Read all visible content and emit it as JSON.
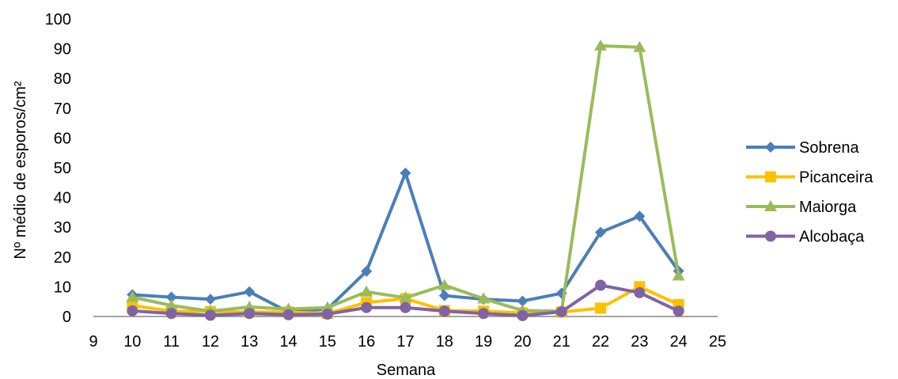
{
  "chart_data": {
    "type": "line",
    "title": "",
    "xlabel": "Semana",
    "ylabel": "Nº médio de esporos/cm²",
    "xlim": [
      9,
      25
    ],
    "ylim": [
      0,
      100
    ],
    "x_ticks": [
      "9",
      "10",
      "11",
      "12",
      "13",
      "14",
      "15",
      "16",
      "17",
      "18",
      "19",
      "20",
      "21",
      "22",
      "23",
      "24",
      "25"
    ],
    "y_ticks": [
      "0",
      "10",
      "20",
      "30",
      "40",
      "50",
      "60",
      "70",
      "80",
      "90",
      "100"
    ],
    "grid": false,
    "legend_position": "right",
    "x": [
      10,
      11,
      12,
      13,
      14,
      15,
      16,
      17,
      18,
      19,
      20,
      21,
      22,
      23,
      24
    ],
    "series": [
      {
        "name": "Sobrena",
        "color": "#4a7ebb",
        "marker": "diamond",
        "values": [
          7.3,
          6.5,
          5.8,
          8.3,
          1.5,
          2.5,
          15.2,
          48.2,
          7.0,
          5.8,
          5.2,
          7.8,
          28.3,
          33.7,
          15.3
        ]
      },
      {
        "name": "Picanceira",
        "color": "#ffc000",
        "marker": "square",
        "values": [
          3.7,
          1.8,
          1.7,
          1.5,
          1.5,
          1.0,
          4.7,
          6.0,
          2.0,
          1.8,
          1.2,
          1.5,
          2.8,
          10.0,
          4.0
        ]
      },
      {
        "name": "Maiorga",
        "color": "#9bbb59",
        "marker": "triangle",
        "values": [
          6.5,
          3.7,
          1.8,
          3.2,
          2.5,
          3.0,
          8.3,
          6.3,
          10.5,
          6.0,
          2.0,
          1.8,
          91.0,
          90.5,
          13.7
        ]
      },
      {
        "name": "Alcobaça",
        "color": "#8064a2",
        "marker": "circle",
        "values": [
          1.9,
          1.0,
          0.4,
          1.0,
          0.6,
          0.8,
          3.0,
          3.0,
          1.8,
          1.0,
          0.3,
          1.6,
          10.5,
          8.0,
          1.8
        ]
      }
    ]
  }
}
